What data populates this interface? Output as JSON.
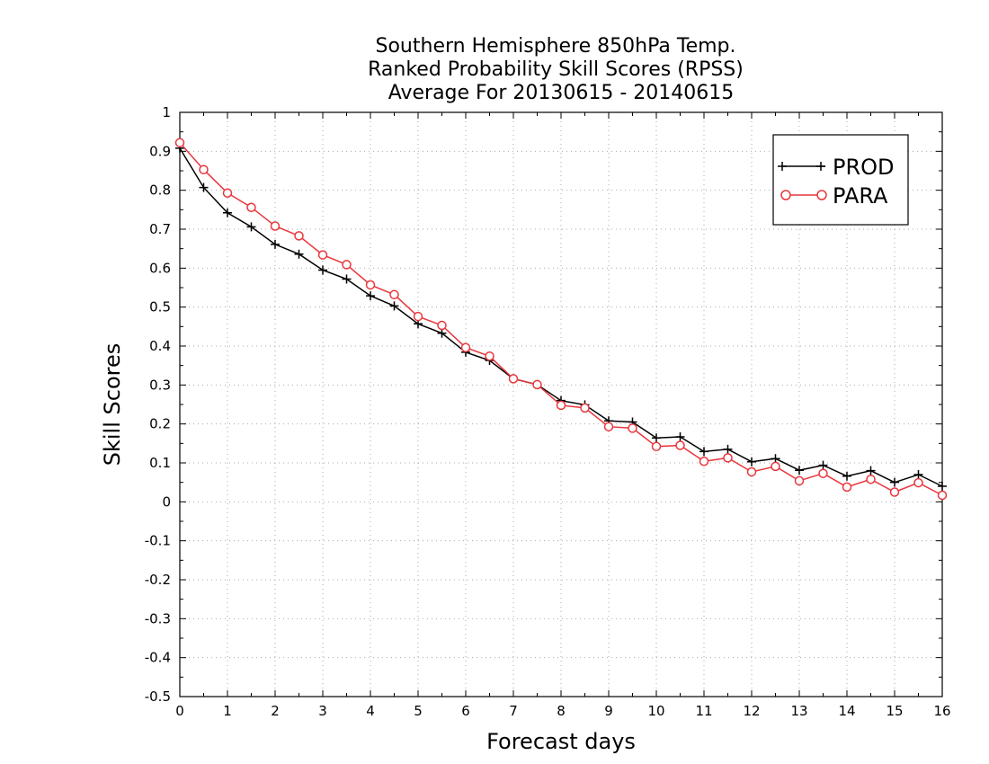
{
  "chart_data": {
    "type": "line",
    "title": [
      "Southern Hemisphere 850hPa Temp.",
      "Ranked Probability Skill Scores (RPSS)",
      "Average For 20130615 - 20140615"
    ],
    "xlabel": "Forecast days",
    "ylabel": "Skill Scores",
    "xlim": [
      0,
      16
    ],
    "ylim": [
      -0.5,
      1
    ],
    "xticks": [
      0,
      1,
      2,
      3,
      4,
      5,
      6,
      7,
      8,
      9,
      10,
      11,
      12,
      13,
      14,
      15,
      16
    ],
    "xtick_labels": [
      "0",
      "1",
      "2",
      "3",
      "4",
      "5",
      "6",
      "7",
      "8",
      "9",
      "10",
      "11",
      "12",
      "13",
      "14",
      "15",
      "16"
    ],
    "yticks": [
      -0.5,
      -0.4,
      -0.3,
      -0.2,
      -0.1,
      0,
      0.1,
      0.2,
      0.3,
      0.4,
      0.5,
      0.6,
      0.7,
      0.8,
      0.9,
      1
    ],
    "ytick_labels": [
      "-0.5",
      "-0.4",
      "-0.3",
      "-0.2",
      "-0.1",
      "0",
      "0.1",
      "0.2",
      "0.3",
      "0.4",
      "0.5",
      "0.6",
      "0.7",
      "0.8",
      "0.9",
      "1"
    ],
    "grid": true,
    "legend_position": "top-right",
    "x": [
      0,
      0.5,
      1,
      1.5,
      2,
      2.5,
      3,
      3.5,
      4,
      4.5,
      5,
      5.5,
      6,
      6.5,
      7,
      7.5,
      8,
      8.5,
      9,
      9.5,
      10,
      10.5,
      11,
      11.5,
      12,
      12.5,
      13,
      13.5,
      14,
      14.5,
      15,
      15.5,
      16
    ],
    "series": [
      {
        "name": "PROD",
        "color": "#000000",
        "marker": "plus",
        "values": [
          0.908,
          0.807,
          0.742,
          0.706,
          0.661,
          0.636,
          0.595,
          0.572,
          0.529,
          0.503,
          0.457,
          0.433,
          0.384,
          0.363,
          0.316,
          0.301,
          0.26,
          0.249,
          0.208,
          0.205,
          0.164,
          0.167,
          0.129,
          0.135,
          0.103,
          0.111,
          0.081,
          0.094,
          0.066,
          0.08,
          0.05,
          0.07,
          0.04
        ]
      },
      {
        "name": "PARA",
        "color": "#e8363c",
        "marker": "circle",
        "values": [
          0.922,
          0.853,
          0.793,
          0.756,
          0.708,
          0.683,
          0.634,
          0.609,
          0.557,
          0.532,
          0.476,
          0.453,
          0.396,
          0.374,
          0.316,
          0.301,
          0.248,
          0.241,
          0.193,
          0.189,
          0.142,
          0.145,
          0.104,
          0.113,
          0.077,
          0.091,
          0.054,
          0.073,
          0.038,
          0.058,
          0.025,
          0.049,
          0.017
        ]
      }
    ]
  }
}
